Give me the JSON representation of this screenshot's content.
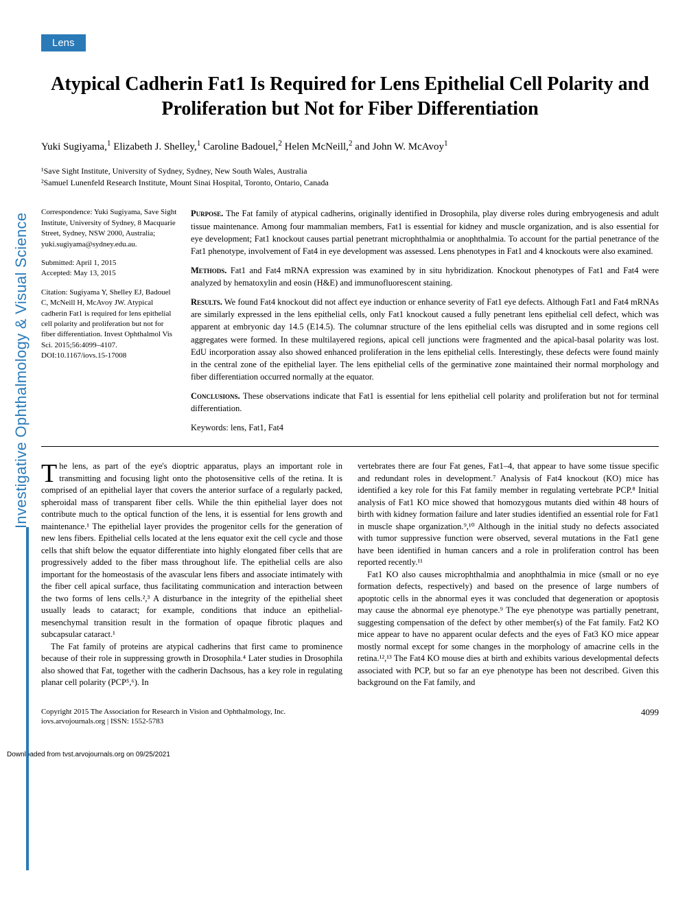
{
  "section_tag": "Lens",
  "title": "Atypical Cadherin Fat1 Is Required for Lens Epithelial Cell Polarity and Proliferation but Not for Fiber Differentiation",
  "authors_html": "Yuki Sugiyama,¹ Elizabeth J. Shelley,¹ Caroline Badouel,² Helen McNeill,² and John W. McAvoy¹",
  "affiliations": [
    "¹Save Sight Institute, University of Sydney, Sydney, New South Wales, Australia",
    "²Samuel Lunenfeld Research Institute, Mount Sinai Hospital, Toronto, Ontario, Canada"
  ],
  "correspondence": "Correspondence: Yuki Sugiyama, Save Sight Institute, University of Sydney, 8 Macquarie Street, Sydney, NSW 2000, Australia; yuki.sugiyama@sydney.edu.au.",
  "submitted": "Submitted: April 1, 2015",
  "accepted": "Accepted: May 13, 2015",
  "citation": "Citation: Sugiyama Y, Shelley EJ, Badouel C, McNeill H, McAvoy JW. Atypical cadherin Fat1 is required for lens epithelial cell polarity and proliferation but not for fiber differentiation. Invest Ophthalmol Vis Sci. 2015;56:4099–4107. DOI:10.1167/iovs.15-17008",
  "abstract": {
    "purpose": "The Fat family of atypical cadherins, originally identified in Drosophila, play diverse roles during embryogenesis and adult tissue maintenance. Among four mammalian members, Fat1 is essential for kidney and muscle organization, and is also essential for eye development; Fat1 knockout causes partial penetrant microphthalmia or anophthalmia. To account for the partial penetrance of the Fat1 phenotype, involvement of Fat4 in eye development was assessed. Lens phenotypes in Fat1 and 4 knockouts were also examined.",
    "methods": "Fat1 and Fat4 mRNA expression was examined by in situ hybridization. Knockout phenotypes of Fat1 and Fat4 were analyzed by hematoxylin and eosin (H&E) and immunofluorescent staining.",
    "results": "We found Fat4 knockout did not affect eye induction or enhance severity of Fat1 eye defects. Although Fat1 and Fat4 mRNAs are similarly expressed in the lens epithelial cells, only Fat1 knockout caused a fully penetrant lens epithelial cell defect, which was apparent at embryonic day 14.5 (E14.5). The columnar structure of the lens epithelial cells was disrupted and in some regions cell aggregates were formed. In these multilayered regions, apical cell junctions were fragmented and the apical-basal polarity was lost. EdU incorporation assay also showed enhanced proliferation in the lens epithelial cells. Interestingly, these defects were found mainly in the central zone of the epithelial layer. The lens epithelial cells of the germinative zone maintained their normal morphology and fiber differentiation occurred normally at the equator.",
    "conclusions": "These observations indicate that Fat1 is essential for lens epithelial cell polarity and proliferation but not for terminal differentiation."
  },
  "keywords": "Keywords: lens, Fat1, Fat4",
  "body": {
    "col1": [
      "he lens, as part of the eye's dioptric apparatus, plays an important role in transmitting and focusing light onto the photosensitive cells of the retina. It is comprised of an epithelial layer that covers the anterior surface of a regularly packed, spheroidal mass of transparent fiber cells. While the thin epithelial layer does not contribute much to the optical function of the lens, it is essential for lens growth and maintenance.¹ The epithelial layer provides the progenitor cells for the generation of new lens fibers. Epithelial cells located at the lens equator exit the cell cycle and those cells that shift below the equator differentiate into highly elongated fiber cells that are progressively added to the fiber mass throughout life. The epithelial cells are also important for the homeostasis of the avascular lens fibers and associate intimately with the fiber cell apical surface, thus facilitating communication and interaction between the two forms of lens cells.²,³ A disturbance in the integrity of the epithelial sheet usually leads to cataract; for example, conditions that induce an epithelial-mesenchymal transition result in the formation of opaque fibrotic plaques and subcapsular cataract.¹",
      "The Fat family of proteins are atypical cadherins that first came to prominence because of their role in suppressing growth in Drosophila.⁴ Later studies in Drosophila also showed that Fat, together with the cadherin Dachsous, has a key role in regulating planar cell polarity (PCP⁵,⁶). In"
    ],
    "col2": [
      "vertebrates there are four Fat genes, Fat1–4, that appear to have some tissue specific and redundant roles in development.⁷ Analysis of Fat4 knockout (KO) mice has identified a key role for this Fat family member in regulating vertebrate PCP.⁸ Initial analysis of Fat1 KO mice showed that homozygous mutants died within 48 hours of birth with kidney formation failure and later studies identified an essential role for Fat1 in muscle shape organization.⁹,¹⁰ Although in the initial study no defects associated with tumor suppressive function were observed, several mutations in the Fat1 gene have been identified in human cancers and a role in proliferation control has been reported recently.¹¹",
      "Fat1 KO also causes microphthalmia and anophthalmia in mice (small or no eye formation defects, respectively) and based on the presence of large numbers of apoptotic cells in the abnormal eyes it was concluded that degeneration or apoptosis may cause the abnormal eye phenotype.⁹ The eye phenotype was partially penetrant, suggesting compensation of the defect by other member(s) of the Fat family. Fat2 KO mice appear to have no apparent ocular defects and the eyes of Fat3 KO mice appear mostly normal except for some changes in the morphology of amacrine cells in the retina.¹²,¹³ The Fat4 KO mouse dies at birth and exhibits various developmental defects associated with PCP, but so far an eye phenotype has been not described. Given this background on the Fat family, and"
    ]
  },
  "footer": {
    "copyright": "Copyright 2015 The Association for Research in Vision and Ophthalmology, Inc.",
    "link": "iovs.arvojournals.org | ISSN: 1552-5783",
    "page": "4099"
  },
  "side_journal": "Investigative Ophthalmology & Visual Science",
  "download": "Downloaded from tvst.arvojournals.org on 09/25/2021",
  "colors": {
    "accent": "#2a7ab8",
    "text": "#000000",
    "background": "#ffffff"
  }
}
